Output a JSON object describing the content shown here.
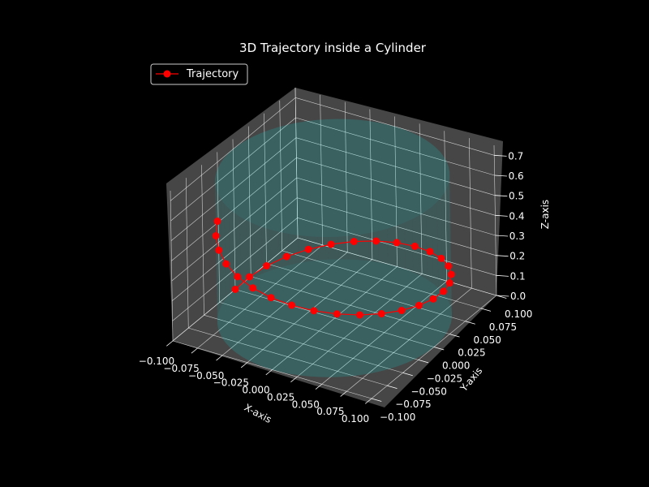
{
  "chart_data": {
    "type": "line",
    "projection": "3d",
    "title": "3D Trajectory inside a Cylinder",
    "xlabel": "X-axis",
    "ylabel": "Y-axis",
    "zlabel": "Z-axis",
    "xlim": [
      -0.1,
      0.1
    ],
    "ylim": [
      -0.1,
      0.1
    ],
    "zlim": [
      0,
      0.75
    ],
    "x_ticks": [
      "−0.100",
      "−0.075",
      "−0.050",
      "−0.025",
      "0.000",
      "0.025",
      "0.050",
      "0.075",
      "0.100"
    ],
    "y_ticks": [
      "−0.100",
      "−0.075",
      "−0.050",
      "−0.025",
      "0.000",
      "0.025",
      "0.050",
      "0.075",
      "0.100"
    ],
    "z_ticks": [
      "0.0",
      "0.1",
      "0.2",
      "0.3",
      "0.4",
      "0.5",
      "0.6",
      "0.7"
    ],
    "grid": true,
    "legend": {
      "location": "upper left",
      "entries": [
        "Trajectory"
      ]
    },
    "colors": {
      "background": "#000000",
      "pane": "#808080",
      "grid": "#ffffff",
      "cylinder": "#00ffff",
      "trajectory": "#ff0000"
    },
    "cylinder": {
      "center": [
        0,
        0
      ],
      "radius": 0.1,
      "z_range": [
        0,
        0.7
      ]
    },
    "series": [
      {
        "name": "Trajectory",
        "points": [
          [
            -0.1,
            0.0,
            0.0
          ],
          [
            -0.098,
            0.0195,
            0.015
          ],
          [
            -0.0924,
            0.0383,
            0.03
          ],
          [
            -0.0831,
            0.0556,
            0.045
          ],
          [
            -0.0707,
            0.0707,
            0.06
          ],
          [
            -0.0556,
            0.0831,
            0.075
          ],
          [
            -0.0383,
            0.0924,
            0.09
          ],
          [
            -0.0195,
            0.098,
            0.105
          ],
          [
            0.0,
            0.1,
            0.12
          ],
          [
            0.0195,
            0.098,
            0.135
          ],
          [
            0.0383,
            0.0924,
            0.15
          ],
          [
            0.0556,
            0.0831,
            0.165
          ],
          [
            0.0707,
            0.0707,
            0.18
          ],
          [
            0.0831,
            0.0556,
            0.195
          ],
          [
            0.0924,
            0.0383,
            0.21
          ],
          [
            0.098,
            0.0195,
            0.225
          ],
          [
            0.1,
            0.0,
            0.24
          ],
          [
            0.098,
            -0.0195,
            0.255
          ],
          [
            0.0924,
            -0.0383,
            0.27
          ],
          [
            0.0831,
            -0.0556,
            0.285
          ],
          [
            0.0707,
            -0.0707,
            0.3
          ],
          [
            0.0556,
            -0.0831,
            0.315
          ],
          [
            0.0383,
            -0.0924,
            0.33
          ],
          [
            0.0195,
            -0.098,
            0.345
          ],
          [
            0.0,
            -0.1,
            0.36
          ],
          [
            -0.0195,
            -0.098,
            0.375
          ],
          [
            -0.0383,
            -0.0924,
            0.39
          ],
          [
            -0.0556,
            -0.0831,
            0.405
          ],
          [
            -0.0707,
            -0.0707,
            0.42
          ],
          [
            -0.0831,
            -0.0556,
            0.435
          ],
          [
            -0.0924,
            -0.0383,
            0.45
          ]
        ]
      }
    ]
  }
}
